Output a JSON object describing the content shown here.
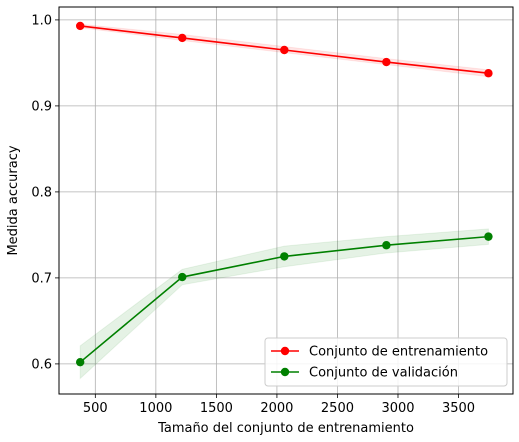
{
  "chart_data": {
    "type": "line",
    "title": "",
    "xlabel": "Tamaño del conjunto de entrenamiento",
    "ylabel": "Medida accuracy",
    "xlim": [
      200,
      3950
    ],
    "ylim": [
      0.565,
      1.015
    ],
    "xticks": [
      500,
      1000,
      1500,
      2000,
      2500,
      3000,
      3500
    ],
    "yticks": [
      0.6,
      0.7,
      0.8,
      0.9,
      1.0
    ],
    "ytick_labels": [
      "0.6",
      "0.7",
      "0.8",
      "0.9",
      "1.0"
    ],
    "grid": true,
    "legend_position": "lower-right",
    "x": [
      375,
      1218,
      2061,
      2904,
      3747
    ],
    "series": [
      {
        "name": "Conjunto de entrenamiento",
        "color": "#ff0000",
        "values": [
          0.993,
          0.979,
          0.965,
          0.951,
          0.938
        ],
        "lower": [
          0.991,
          0.976,
          0.962,
          0.948,
          0.934
        ],
        "upper": [
          0.995,
          0.983,
          0.969,
          0.955,
          0.942
        ]
      },
      {
        "name": "Conjunto de validación",
        "color": "#008000",
        "values": [
          0.602,
          0.701,
          0.725,
          0.738,
          0.748
        ],
        "lower": [
          0.583,
          0.692,
          0.713,
          0.729,
          0.739
        ],
        "upper": [
          0.621,
          0.71,
          0.737,
          0.748,
          0.757
        ]
      }
    ]
  }
}
